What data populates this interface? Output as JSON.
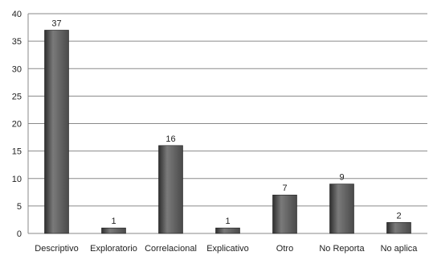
{
  "chart_data": {
    "type": "bar",
    "categories": [
      "Descriptivo",
      "Exploratorio",
      "Correlacional",
      "Explicativo",
      "Otro",
      "No Reporta",
      "No aplica"
    ],
    "values": [
      37,
      1,
      16,
      1,
      7,
      9,
      2
    ],
    "data_labels": [
      "37",
      "1",
      "16",
      "1",
      "7",
      "9",
      "2"
    ],
    "yticks": [
      0,
      5,
      10,
      15,
      20,
      25,
      30,
      35,
      40
    ],
    "ylim": [
      0,
      40
    ],
    "grid": true,
    "legend": "none",
    "bar_color": "#4a4a4a",
    "bar_highlight": "#7a7a7a",
    "bar_dark": "#2e2e2e"
  }
}
